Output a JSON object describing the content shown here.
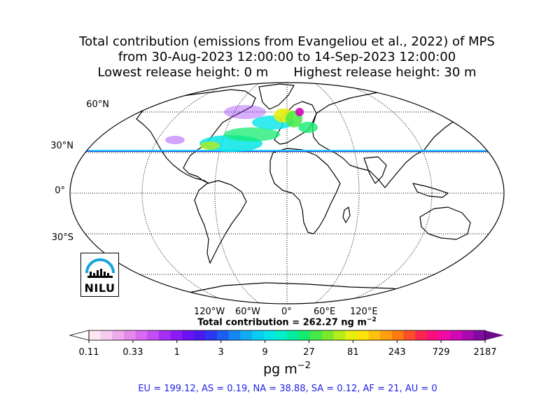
{
  "title": {
    "line1": "Total contribution (emissions from Evangeliou et al., 2022) of MPS",
    "line2": "from 30-Aug-2023 12:00:00 to 14-Sep-2023 12:00:00",
    "line3_left": "Lowest release height: 0 m",
    "line3_right": "Highest release height: 30 m"
  },
  "map": {
    "lat_labels": [
      "60°N",
      "30°N",
      "0°",
      "30°S"
    ],
    "lon_labels": [
      "120°W",
      "60°W",
      "0°",
      "60°E",
      "120°E"
    ]
  },
  "total_label": "Total contribution = 262.27 ng m",
  "total_exponent": "−2",
  "colorbar": {
    "ticks": [
      "0.11",
      "0.33",
      "1",
      "3",
      "9",
      "27",
      "81",
      "243",
      "729",
      "2187"
    ],
    "unit_base": "pg m",
    "unit_exponent": "−2",
    "colors": [
      "#fde6f4",
      "#f7cbee",
      "#eeaaeb",
      "#e68ae9",
      "#d76af0",
      "#c54cf4",
      "#a52ff5",
      "#8b1af6",
      "#6a11f5",
      "#4a17f3",
      "#2b38f2",
      "#1c5ef2",
      "#1587f3",
      "#0faef4",
      "#08cdf2",
      "#04e5e8",
      "#00f0c9",
      "#00ee9d",
      "#14ec70",
      "#46ea45",
      "#7ce82c",
      "#b4ec1c",
      "#e6f00f",
      "#ffe40a",
      "#ffc20a",
      "#ffa00c",
      "#ff7b12",
      "#ff4e28",
      "#ff2550",
      "#ff0d7e",
      "#f408a4",
      "#d207b5",
      "#ab08b3",
      "#840aa4"
    ],
    "min_color": "#ffffff",
    "max_color": "#6b0a88"
  },
  "regions_text": "EU = 199.12,  AS = 0.19,  NA = 38.88,  SA = 0.12,  AF = 21,  AU = 0",
  "logo": {
    "text": "NILU"
  }
}
